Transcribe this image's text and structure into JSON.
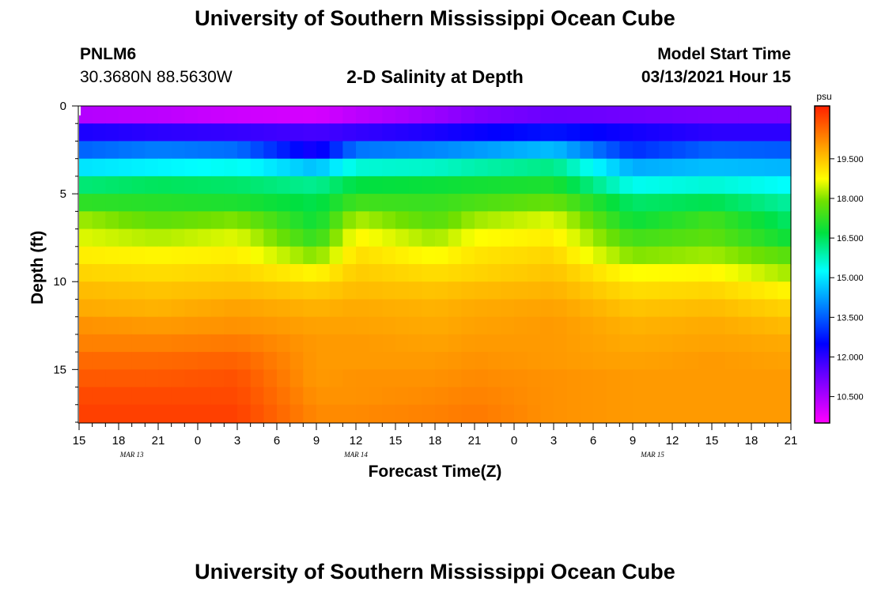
{
  "header": {
    "top_title": "University of Southern Mississippi Ocean Cube",
    "bottom_title": "University of Southern Mississippi Ocean Cube",
    "station_id": "PNLM6",
    "coordinates": "30.3680N 88.5630W",
    "model_start_label": "Model Start Time",
    "model_start_value": "03/13/2021 Hour 15"
  },
  "chart_data": {
    "type": "heatmap",
    "title": "2-D Salinity at Depth",
    "xlabel": "Forecast Time(Z)",
    "ylabel": "Depth (ft)",
    "units": "psu",
    "x_hours": [
      0,
      54
    ],
    "y_range": [
      0,
      18
    ],
    "x_ticks": [
      "15",
      "18",
      "21",
      "0",
      "3",
      "6",
      "9",
      "12",
      "15",
      "18",
      "21",
      "0",
      "3",
      "6",
      "9",
      "12",
      "15",
      "18",
      "21"
    ],
    "y_ticks": [
      0,
      5,
      10,
      15
    ],
    "date_labels": [
      {
        "label": "MAR  13",
        "hour": 4
      },
      {
        "label": "MAR  14",
        "hour": 21
      },
      {
        "label": "MAR  15",
        "hour": 43.5
      }
    ],
    "colorbar": {
      "range": [
        9.5,
        21.5
      ],
      "ticks": [
        "10.500",
        "12.000",
        "13.500",
        "15.000",
        "16.500",
        "18.000",
        "19.500"
      ]
    },
    "depth_levels_ft": [
      0.5,
      1.5,
      2.5,
      3.5,
      4.5,
      5.5,
      6.5,
      7.5,
      8.5,
      9.5,
      10.5,
      11.5,
      12.5,
      13.5,
      14.5,
      15.5,
      16.5,
      17.5
    ],
    "time_hours": [
      0,
      6,
      12,
      18,
      21,
      27,
      30,
      36,
      42,
      48,
      54
    ],
    "salinity_psu": [
      [
        10.4,
        10.3,
        10.1,
        10.0,
        10.3,
        10.7,
        11.0,
        11.3,
        11.2,
        11.1,
        11.1
      ],
      [
        12.2,
        12.0,
        11.9,
        11.7,
        11.9,
        12.2,
        12.4,
        12.7,
        12.3,
        12.0,
        12.0
      ],
      [
        13.6,
        13.9,
        13.7,
        12.2,
        13.8,
        14.0,
        14.2,
        14.6,
        13.0,
        13.6,
        13.5
      ],
      [
        15.0,
        15.2,
        15.4,
        14.6,
        15.6,
        15.7,
        15.9,
        16.2,
        14.4,
        14.6,
        14.5
      ],
      [
        16.3,
        16.5,
        16.4,
        16.1,
        16.7,
        16.8,
        16.9,
        17.0,
        15.4,
        15.6,
        15.3
      ],
      [
        17.2,
        17.1,
        17.0,
        16.6,
        17.4,
        17.3,
        17.5,
        17.8,
        16.4,
        16.6,
        16.0
      ],
      [
        18.2,
        17.7,
        18.0,
        16.8,
        18.3,
        17.6,
        18.2,
        18.6,
        16.8,
        17.4,
        16.4
      ],
      [
        18.6,
        18.3,
        18.6,
        17.2,
        18.9,
        18.2,
        18.8,
        19.0,
        17.4,
        17.7,
        16.8
      ],
      [
        19.0,
        18.9,
        19.0,
        18.0,
        19.2,
        18.8,
        19.1,
        19.3,
        18.0,
        18.2,
        17.6
      ],
      [
        19.3,
        19.2,
        19.3,
        18.9,
        19.4,
        19.2,
        19.3,
        19.5,
        18.8,
        18.9,
        18.2
      ],
      [
        19.6,
        19.5,
        19.6,
        19.4,
        19.6,
        19.5,
        19.6,
        19.7,
        19.2,
        19.3,
        18.9
      ],
      [
        19.8,
        19.7,
        19.9,
        19.7,
        19.8,
        19.7,
        19.8,
        19.9,
        19.5,
        19.6,
        19.3
      ],
      [
        20.1,
        20.0,
        20.1,
        19.9,
        19.9,
        19.8,
        19.9,
        20.0,
        19.7,
        19.8,
        19.6
      ],
      [
        20.3,
        20.3,
        20.4,
        20.0,
        20.0,
        19.9,
        20.0,
        20.0,
        19.8,
        19.9,
        19.8
      ],
      [
        20.6,
        20.6,
        20.7,
        20.0,
        20.0,
        20.0,
        20.1,
        20.0,
        19.9,
        20.0,
        19.9
      ],
      [
        20.8,
        20.8,
        20.9,
        20.0,
        20.1,
        20.1,
        20.2,
        20.1,
        20.0,
        20.0,
        20.0
      ],
      [
        21.0,
        21.0,
        21.0,
        20.1,
        20.1,
        20.2,
        20.3,
        20.1,
        20.0,
        20.0,
        20.0
      ],
      [
        21.1,
        21.1,
        21.1,
        20.2,
        20.2,
        20.3,
        20.4,
        20.1,
        20.0,
        20.0,
        20.0
      ]
    ]
  }
}
